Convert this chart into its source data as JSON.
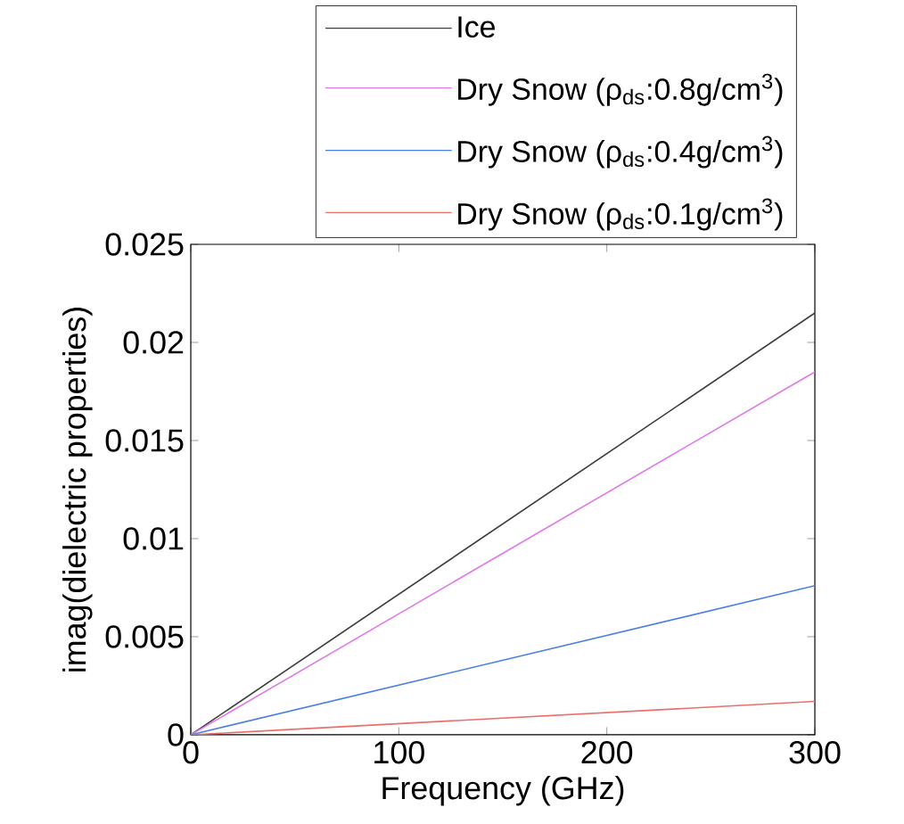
{
  "chart_data": {
    "type": "line",
    "xlabel": "Frequency (GHz)",
    "ylabel": "imag(dielectric properties)",
    "xlim": [
      0,
      300
    ],
    "ylim": [
      0,
      0.025
    ],
    "xticks": [
      0,
      100,
      200,
      300
    ],
    "yticks": [
      0,
      0.005,
      0.01,
      0.015,
      0.02,
      0.025
    ],
    "legend": "top right",
    "grid": false,
    "marker": "none",
    "line_style": "solid",
    "x": [
      0,
      300
    ],
    "series": [
      {
        "name": "Ice",
        "color": "#3c3c3c",
        "values": [
          0,
          0.0215
        ]
      },
      {
        "name": "Dry Snow (ρ$_{ds}$:0.8g/cm$^{3}$)",
        "color": "#e07ae6",
        "values": [
          0,
          0.0185
        ]
      },
      {
        "name": "Dry Snow (ρ$_{ds}$:0.4g/cm$^{3}$)",
        "color": "#4a7fe6",
        "values": [
          0,
          0.0076
        ]
      },
      {
        "name": "Dry Snow (ρ$_{ds}$:0.1g/cm$^{3}$)",
        "color": "#e8706a",
        "values": [
          0,
          0.0017
        ]
      }
    ]
  }
}
